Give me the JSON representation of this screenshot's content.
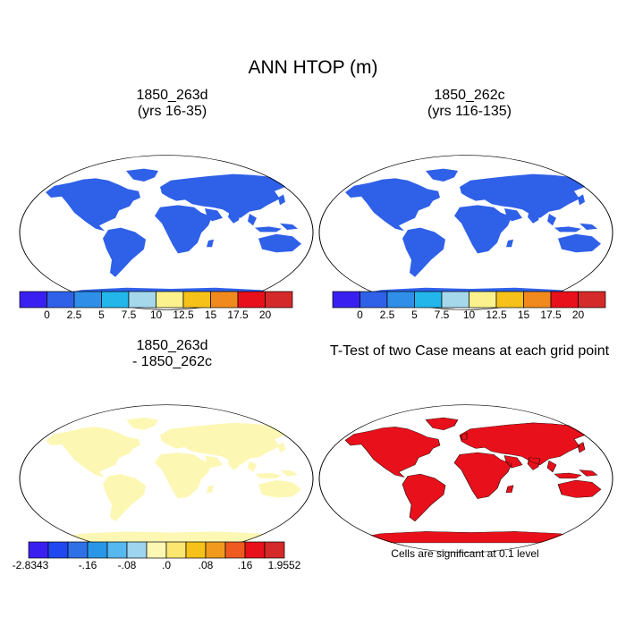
{
  "main_title": "ANN HTOP (m)",
  "panels": {
    "top_left": {
      "title_line1": "1850_263d",
      "title_line2": "(yrs 16-35)"
    },
    "top_right": {
      "title_line1": "1850_262c",
      "title_line2": "(yrs 116-135)"
    },
    "bottom_left": {
      "title_line1": "1850_263d",
      "title_line2": "- 1850_262c"
    },
    "bottom_right": {
      "title": "T-Test of two Case means at each grid point",
      "note": "Cells are significant at 0.1 level"
    }
  },
  "colorbars": {
    "htop": {
      "colors": [
        "#3a20f0",
        "#2f60e8",
        "#2f8fe8",
        "#22b6ea",
        "#a6d8ec",
        "#fbf28e",
        "#f6c21a",
        "#f08a1e",
        "#e8101a",
        "#d42a2a"
      ],
      "labels": [
        "0",
        "2.5",
        "5",
        "7.5",
        "10",
        "12.5",
        "15",
        "17.5",
        "20"
      ]
    },
    "diff": {
      "colors": [
        "#3a20f0",
        "#2048f0",
        "#2f70e6",
        "#2a96e8",
        "#56b8ee",
        "#9ed4ee",
        "#fdf7b4",
        "#fbe670",
        "#f6c21a",
        "#f29a1e",
        "#ee5a20",
        "#e8101a",
        "#d42a2a"
      ],
      "labels": [
        "-2.8343",
        "-.16",
        "-.08",
        ".0",
        ".08",
        ".16",
        "1.9552"
      ]
    }
  },
  "map_colors": {
    "ocean": "#ffffff",
    "htop_base": "#2f60e8",
    "htop_tropical": "#d42a2a",
    "diff_base": "#a6d8ec",
    "diff_neutral": "#fdf7b4",
    "ttest_sig": "#e8101a"
  }
}
